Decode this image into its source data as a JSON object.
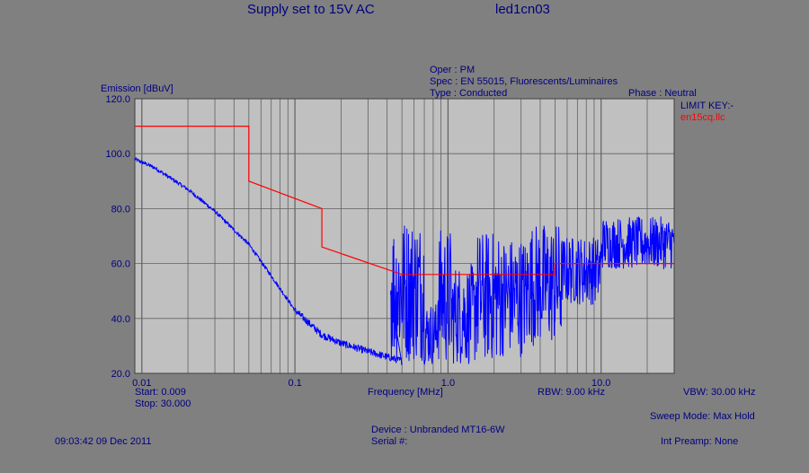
{
  "header": {
    "title": "Supply set to 15V AC",
    "filename": "led1cn03",
    "oper": "Oper : PM",
    "spec": "Spec : EN 55015, Fluorescents/Luminaires",
    "type": "Type : Conducted",
    "phase": "Phase : Neutral"
  },
  "limit_key": {
    "label": "LIMIT KEY:-",
    "file": "en15cq.llc"
  },
  "footer": {
    "start": "Start: 0.009",
    "stop": "Stop: 30.000",
    "xaxis_label": "Frequency [MHz]",
    "rbw": "RBW: 9.00 kHz",
    "vbw": "VBW: 30.00 kHz",
    "sweep_mode": "Sweep Mode: Max Hold",
    "device": "Device : Unbranded MT16-6W",
    "serial": "Serial #:",
    "int_preamp": "Int Preamp: None",
    "timestamp": "09:03:42 09 Dec 2011"
  },
  "chart_data": {
    "type": "line",
    "ylabel": "Emission [dBuV]",
    "xlabel": "Frequency [MHz]",
    "xscale": "log",
    "xlim": [
      0.009,
      30.0
    ],
    "ylim": [
      20,
      120
    ],
    "yticks": [
      "20.0",
      "40.0",
      "60.0",
      "80.0",
      "100.0",
      "120.0"
    ],
    "yticks_values": [
      20,
      40,
      60,
      80,
      100,
      120
    ],
    "xticks": [
      "0.01",
      "0.1",
      "1.0",
      "10.0"
    ],
    "xticks_values": [
      0.01,
      0.1,
      1.0,
      10.0
    ],
    "grid": true,
    "colors": {
      "plot_bg": "#c0c0c0",
      "grid": "#606060",
      "emission": "#0000ff",
      "limit": "#ff0000",
      "text": "#000080"
    },
    "series": [
      {
        "role": "limit",
        "color": "#ff0000",
        "points": [
          [
            0.009,
            110
          ],
          [
            0.05,
            110
          ],
          [
            0.05,
            90
          ],
          [
            0.15,
            80
          ],
          [
            0.15,
            66
          ],
          [
            0.5,
            56
          ],
          [
            5.0,
            56
          ],
          [
            5.0,
            60
          ],
          [
            30.0,
            60
          ]
        ]
      },
      {
        "role": "emission",
        "color": "#0000ff",
        "envelope": [
          [
            0.009,
            98
          ],
          [
            0.012,
            95
          ],
          [
            0.02,
            87
          ],
          [
            0.03,
            79
          ],
          [
            0.05,
            67
          ],
          [
            0.07,
            55.5
          ],
          [
            0.1,
            43
          ],
          [
            0.15,
            34
          ],
          [
            0.2,
            31
          ],
          [
            0.3,
            28
          ],
          [
            0.4,
            26
          ],
          [
            0.5,
            24.5
          ]
        ],
        "bursts": [
          {
            "xmin": 0.42,
            "xmax": 0.7,
            "ymin": 24,
            "ymax": 77
          },
          {
            "xmin": 0.7,
            "xmax": 0.85,
            "ymin": 23,
            "ymax": 46
          },
          {
            "xmin": 0.85,
            "xmax": 1.05,
            "ymin": 23,
            "ymax": 73
          },
          {
            "xmin": 1.05,
            "xmax": 1.5,
            "ymin": 23,
            "ymax": 60
          },
          {
            "xmin": 1.5,
            "xmax": 2.2,
            "ymin": 24,
            "ymax": 72
          },
          {
            "xmin": 2.2,
            "xmax": 3.3,
            "ymin": 26,
            "ymax": 70
          },
          {
            "xmin": 3.3,
            "xmax": 5.5,
            "ymin": 30,
            "ymax": 75
          },
          {
            "xmin": 5.5,
            "xmax": 10,
            "ymin": 45,
            "ymax": 70
          },
          {
            "xmin": 10,
            "xmax": 30,
            "ymin": 58,
            "ymax": 77
          }
        ]
      }
    ]
  }
}
